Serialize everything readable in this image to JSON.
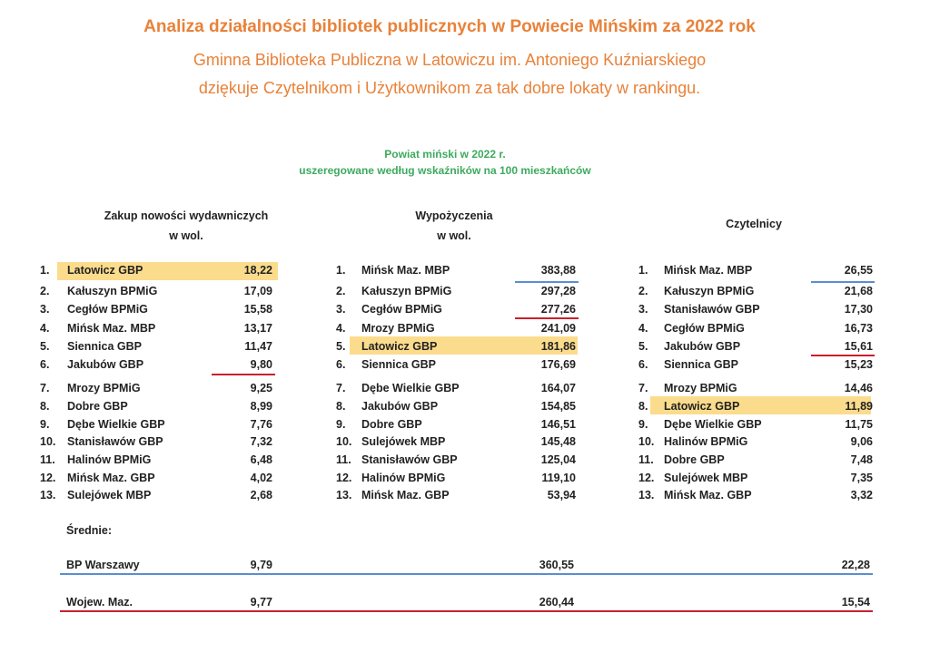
{
  "header": {
    "title": "Analiza działalności bibliotek publicznych w Powiecie Mińskim za 2022 rok",
    "line1": "Gminna Biblioteka Publiczna w Latowiczu im. Antoniego Kuźniarskiego",
    "line2": "dziękuje Czytelnikom i Użytkownikom za tak dobre lokaty w rankingu."
  },
  "subtitle": {
    "line1": "Powiat miński w 2022 r.",
    "line2": "uszeregowane według wskaźników na 100 mieszkańców"
  },
  "columns": [
    {
      "head1": "Zakup nowości wydawniczych",
      "head2": "w wol.",
      "rows": [
        {
          "n": "1.",
          "name": "Latowicz GBP",
          "val": "18,22"
        },
        {
          "n": "2.",
          "name": "Kałuszyn BPMiG",
          "val": "17,09"
        },
        {
          "n": "3.",
          "name": "Cegłów BPMiG",
          "val": "15,58"
        },
        {
          "n": "4.",
          "name": "Mińsk Maz. MBP",
          "val": "13,17"
        },
        {
          "n": "5.",
          "name": "Siennica GBP",
          "val": "11,47"
        },
        {
          "n": "6.",
          "name": "Jakubów GBP",
          "val": "9,80"
        },
        {
          "n": "7.",
          "name": "Mrozy BPMiG",
          "val": "9,25"
        },
        {
          "n": "8.",
          "name": "Dobre GBP",
          "val": "8,99"
        },
        {
          "n": "9.",
          "name": "Dębe Wielkie GBP",
          "val": "7,76"
        },
        {
          "n": "10.",
          "name": "Stanisławów GBP",
          "val": "7,32"
        },
        {
          "n": "11.",
          "name": "Halinów BPMiG",
          "val": "6,48"
        },
        {
          "n": "12.",
          "name": "Mińsk Maz. GBP",
          "val": "4,02"
        },
        {
          "n": "13.",
          "name": "Sulejówek MBP",
          "val": "2,68"
        }
      ]
    },
    {
      "head1": "Wypożyczenia",
      "head2": "w wol.",
      "rows": [
        {
          "n": "1.",
          "name": "Mińsk Maz. MBP",
          "val": "383,88"
        },
        {
          "n": "2.",
          "name": "Kałuszyn BPMiG",
          "val": "297,28"
        },
        {
          "n": "3.",
          "name": "Cegłów BPMiG",
          "val": "277,26"
        },
        {
          "n": "4.",
          "name": "Mrozy BPMiG",
          "val": "241,09"
        },
        {
          "n": "5.",
          "name": "Latowicz GBP",
          "val": "181,86"
        },
        {
          "n": "6.",
          "name": "Siennica GBP",
          "val": "176,69"
        },
        {
          "n": "7.",
          "name": "Dębe Wielkie GBP",
          "val": "164,07"
        },
        {
          "n": "8.",
          "name": "Jakubów GBP",
          "val": "154,85"
        },
        {
          "n": "9.",
          "name": "Dobre GBP",
          "val": "146,51"
        },
        {
          "n": "10.",
          "name": "Sulejówek MBP",
          "val": "145,48"
        },
        {
          "n": "11.",
          "name": "Stanisławów GBP",
          "val": "125,04"
        },
        {
          "n": "12.",
          "name": "Halinów BPMiG",
          "val": "119,10"
        },
        {
          "n": "13.",
          "name": "Mińsk Maz. GBP",
          "val": "53,94"
        }
      ]
    },
    {
      "head1": "Czytelnicy",
      "head2": "",
      "rows": [
        {
          "n": "1.",
          "name": "Mińsk Maz. MBP",
          "val": "26,55"
        },
        {
          "n": "2.",
          "name": "Kałuszyn BPMiG",
          "val": "21,68"
        },
        {
          "n": "3.",
          "name": "Stanisławów GBP",
          "val": "17,30"
        },
        {
          "n": "4.",
          "name": "Cegłów BPMiG",
          "val": "16,73"
        },
        {
          "n": "5.",
          "name": "Jakubów GBP",
          "val": "15,61"
        },
        {
          "n": "6.",
          "name": "Siennica GBP",
          "val": "15,23"
        },
        {
          "n": "7.",
          "name": "Mrozy BPMiG",
          "val": "14,46"
        },
        {
          "n": "8.",
          "name": "Latowicz GBP",
          "val": "11,89"
        },
        {
          "n": "9.",
          "name": "Dębe Wielkie GBP",
          "val": "11,75"
        },
        {
          "n": "10.",
          "name": "Halinów BPMiG",
          "val": "9,06"
        },
        {
          "n": "11.",
          "name": "Dobre GBP",
          "val": "7,48"
        },
        {
          "n": "12.",
          "name": "Sulejówek MBP",
          "val": "7,35"
        },
        {
          "n": "13.",
          "name": "Mińsk Maz. GBP",
          "val": "3,32"
        }
      ]
    }
  ],
  "averages": {
    "label": "Średnie:",
    "warsaw": {
      "name": "BP Warszawy",
      "v1": "9,79",
      "v2": "360,55",
      "v3": "22,28"
    },
    "mazowsze": {
      "name": "Wojew. Maz.",
      "v1": "9,77",
      "v2": "260,44",
      "v3": "15,54"
    }
  },
  "colors": {
    "title": "#e8823a",
    "subtitle": "#3daa5e",
    "highlight": "#fbdc8c",
    "blue_line": "#5b8ed0",
    "red_line": "#c8202c"
  }
}
